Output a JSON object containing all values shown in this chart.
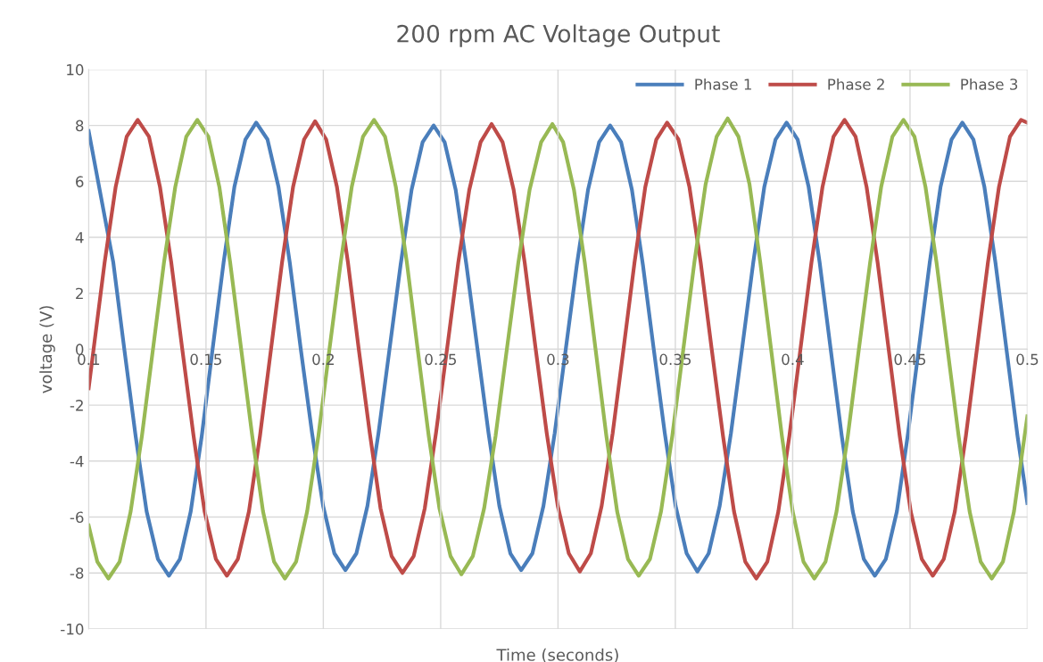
{
  "chart_data": {
    "type": "line",
    "title": "200 rpm AC Voltage Output",
    "xlabel": "Time (seconds)",
    "ylabel": "voltage (V)",
    "xlim": [
      0.1,
      0.5
    ],
    "ylim": [
      -10,
      10
    ],
    "xticks": [
      0.1,
      0.15,
      0.2,
      0.25,
      0.3,
      0.35,
      0.4,
      0.45,
      0.5
    ],
    "yticks": [
      -10,
      -8,
      -6,
      -4,
      -2,
      0,
      2,
      4,
      6,
      8,
      10
    ],
    "grid": true,
    "legend": "top right",
    "marker": "none",
    "line_style": "solid",
    "series": [
      {
        "name": "Phase 1",
        "color": "#4a7ebb",
        "x": [
          0.1,
          0.1105,
          0.1152,
          0.12,
          0.1247,
          0.1295,
          0.1342,
          0.1389,
          0.1435,
          0.1482,
          0.1528,
          0.1575,
          0.1621,
          0.1668,
          0.1714,
          0.1762,
          0.1809,
          0.1857,
          0.1904,
          0.1952,
          0.1999,
          0.2047,
          0.2094,
          0.2141,
          0.2188,
          0.2235,
          0.2282,
          0.2329,
          0.2376,
          0.2423,
          0.247,
          0.2517,
          0.2564,
          0.261,
          0.2657,
          0.2704,
          0.275,
          0.2797,
          0.2843,
          0.2891,
          0.2938,
          0.2986,
          0.3033,
          0.308,
          0.3128,
          0.3175,
          0.3222,
          0.3269,
          0.3315,
          0.3362,
          0.3408,
          0.3455,
          0.3501,
          0.3548,
          0.3594,
          0.3642,
          0.3689,
          0.3737,
          0.3784,
          0.3832,
          0.3879,
          0.3927,
          0.3974,
          0.4021,
          0.4068,
          0.4115,
          0.4162,
          0.4209,
          0.4256,
          0.4303,
          0.435,
          0.4397,
          0.4444,
          0.449,
          0.4537,
          0.4584,
          0.463,
          0.4677,
          0.4723,
          0.477,
          0.4817,
          0.4864,
          0.4911,
          0.4958,
          0.5
        ],
        "values": [
          7.8,
          3.1,
          0,
          -3.1,
          -5.8,
          -7.5,
          -8.1,
          -7.5,
          -5.8,
          -3.1,
          0,
          3.1,
          5.8,
          7.5,
          8.1,
          7.5,
          5.8,
          3.1,
          0,
          -3.0,
          -5.6,
          -7.3,
          -7.9,
          -7.3,
          -5.6,
          -3.0,
          0,
          3.0,
          5.7,
          7.4,
          8.0,
          7.4,
          5.7,
          3.0,
          0,
          -3.0,
          -5.6,
          -7.3,
          -7.9,
          -7.3,
          -5.6,
          -3.0,
          0,
          3.0,
          5.7,
          7.4,
          8.0,
          7.4,
          5.7,
          3.0,
          0,
          -3.0,
          -5.6,
          -7.3,
          -7.95,
          -7.3,
          -5.6,
          -3.0,
          0,
          3.1,
          5.8,
          7.5,
          8.1,
          7.5,
          5.8,
          3.1,
          0,
          -3.1,
          -5.8,
          -7.5,
          -8.1,
          -7.5,
          -5.8,
          -3.1,
          0,
          3.1,
          5.8,
          7.5,
          8.1,
          7.5,
          5.8,
          3.1,
          0,
          -3.1,
          -5.5
        ]
      },
      {
        "name": "Phase 2",
        "color": "#be4b48",
        "x": [
          0.1,
          0.1021,
          0.1068,
          0.1115,
          0.1162,
          0.1209,
          0.1257,
          0.1304,
          0.1352,
          0.1399,
          0.1447,
          0.1494,
          0.1542,
          0.1589,
          0.1636,
          0.1683,
          0.173,
          0.1777,
          0.1824,
          0.1871,
          0.1918,
          0.1965,
          0.2012,
          0.2058,
          0.2105,
          0.2151,
          0.2198,
          0.2244,
          0.2291,
          0.2337,
          0.2385,
          0.2432,
          0.248,
          0.2527,
          0.2575,
          0.2622,
          0.267,
          0.2717,
          0.2764,
          0.2811,
          0.2858,
          0.2905,
          0.2952,
          0.2999,
          0.3046,
          0.3093,
          0.314,
          0.3186,
          0.3233,
          0.3279,
          0.3326,
          0.3372,
          0.3419,
          0.3465,
          0.3513,
          0.356,
          0.3608,
          0.3655,
          0.3703,
          0.375,
          0.3798,
          0.3845,
          0.3892,
          0.3939,
          0.3986,
          0.4033,
          0.408,
          0.4127,
          0.4174,
          0.4221,
          0.4268,
          0.4315,
          0.4362,
          0.4409,
          0.4456,
          0.4503,
          0.455,
          0.4597,
          0.4644,
          0.4691,
          0.4738,
          0.4785,
          0.4832,
          0.4879,
          0.4926,
          0.4973,
          0.5
        ],
        "values": [
          -1.4,
          0,
          3.1,
          5.8,
          7.6,
          8.2,
          7.6,
          5.8,
          3.1,
          0,
          -3.1,
          -5.8,
          -7.5,
          -8.1,
          -7.5,
          -5.8,
          -3.1,
          0,
          3.1,
          5.8,
          7.5,
          8.15,
          7.5,
          5.8,
          3.1,
          0,
          -3.0,
          -5.7,
          -7.4,
          -8.0,
          -7.4,
          -5.7,
          -3.0,
          0,
          3.1,
          5.7,
          7.4,
          8.05,
          7.4,
          5.7,
          3.1,
          0,
          -3.0,
          -5.6,
          -7.3,
          -7.95,
          -7.3,
          -5.6,
          -3.0,
          0,
          3.1,
          5.8,
          7.5,
          8.1,
          7.5,
          5.8,
          3.1,
          0,
          -3.1,
          -5.8,
          -7.6,
          -8.2,
          -7.6,
          -5.8,
          -3.1,
          0,
          3.1,
          5.8,
          7.6,
          8.2,
          7.6,
          5.8,
          3.1,
          0,
          -3.1,
          -5.8,
          -7.5,
          -8.1,
          -7.5,
          -5.8,
          -3.1,
          0,
          3.1,
          5.8,
          7.6,
          8.2,
          8.1
        ]
      },
      {
        "name": "Phase 3",
        "color": "#98b954",
        "x": [
          0.1,
          0.1037,
          0.1084,
          0.1132,
          0.1179,
          0.1227,
          0.1274,
          0.1321,
          0.1369,
          0.1416,
          0.1463,
          0.151,
          0.1557,
          0.1603,
          0.165,
          0.1697,
          0.1743,
          0.179,
          0.1836,
          0.1884,
          0.1931,
          0.1979,
          0.2026,
          0.2074,
          0.2121,
          0.2169,
          0.2216,
          0.2263,
          0.2309,
          0.2356,
          0.2402,
          0.2449,
          0.2495,
          0.2542,
          0.2588,
          0.2637,
          0.2685,
          0.2734,
          0.2782,
          0.2831,
          0.2879,
          0.2928,
          0.2976,
          0.3022,
          0.3068,
          0.3114,
          0.316,
          0.3206,
          0.3252,
          0.3298,
          0.3344,
          0.3392,
          0.3439,
          0.3487,
          0.3534,
          0.3581,
          0.3629,
          0.3676,
          0.3723,
          0.3769,
          0.3816,
          0.3862,
          0.3908,
          0.3954,
          0.4,
          0.4046,
          0.4092,
          0.414,
          0.4187,
          0.4235,
          0.4282,
          0.433,
          0.4377,
          0.4425,
          0.4472,
          0.4519,
          0.4566,
          0.4613,
          0.466,
          0.4707,
          0.4754,
          0.4801,
          0.4848,
          0.4896,
          0.4943,
          0.5
        ],
        "values": [
          -6.3,
          -7.6,
          -8.2,
          -7.6,
          -5.8,
          -3.1,
          0,
          3.1,
          5.8,
          7.6,
          8.2,
          7.6,
          5.8,
          3.1,
          0,
          -3.1,
          -5.8,
          -7.6,
          -8.2,
          -7.6,
          -5.8,
          -3.1,
          0,
          3.1,
          5.8,
          7.6,
          8.2,
          7.6,
          5.8,
          3.1,
          0,
          -3.1,
          -5.7,
          -7.4,
          -8.05,
          -7.4,
          -5.7,
          -3.1,
          0,
          3.1,
          5.7,
          7.4,
          8.05,
          7.4,
          5.7,
          3.1,
          0,
          -3.1,
          -5.8,
          -7.5,
          -8.1,
          -7.5,
          -5.8,
          -3.1,
          0,
          3.1,
          5.9,
          7.6,
          8.25,
          7.6,
          5.9,
          3.1,
          0,
          -3.1,
          -5.8,
          -7.6,
          -8.2,
          -7.6,
          -5.8,
          -3.1,
          0,
          3.1,
          5.8,
          7.6,
          8.2,
          7.6,
          5.8,
          3.1,
          0,
          -3.1,
          -5.8,
          -7.6,
          -8.2,
          -7.6,
          -5.8,
          -2.4
        ]
      }
    ]
  }
}
